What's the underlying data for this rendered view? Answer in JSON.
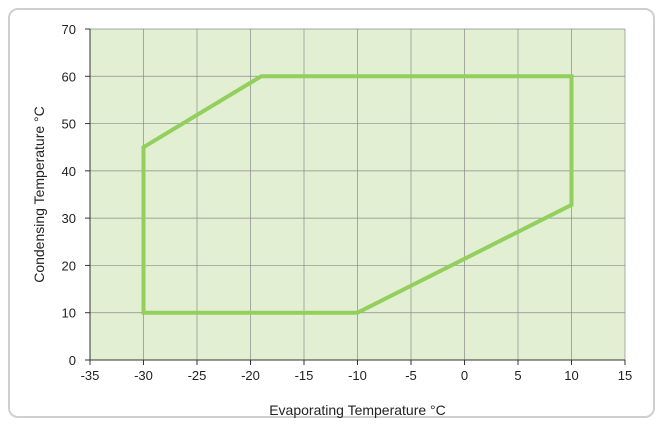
{
  "chart_data": {
    "type": "line",
    "title": "",
    "xlabel": "Evaporating Temperature °C",
    "ylabel": "Condensing Temperature °C",
    "xlim": [
      -35,
      15
    ],
    "ylim": [
      0,
      70
    ],
    "xticks": [
      -35,
      -30,
      -25,
      -20,
      -15,
      -10,
      -5,
      0,
      5,
      10,
      15
    ],
    "yticks": [
      0,
      10,
      20,
      30,
      40,
      50,
      60,
      70
    ],
    "grid": true,
    "plot_background": "#e3efd3",
    "grid_color": "#8a8a8a",
    "series": [
      {
        "closed": true,
        "color": "#92cf5c",
        "points": [
          {
            "x": -30,
            "y": 10
          },
          {
            "x": -30,
            "y": 45
          },
          {
            "x": -19,
            "y": 60
          },
          {
            "x": 10,
            "y": 60
          },
          {
            "x": 10,
            "y": 32.8
          },
          {
            "x": -10,
            "y": 10
          }
        ]
      }
    ]
  }
}
